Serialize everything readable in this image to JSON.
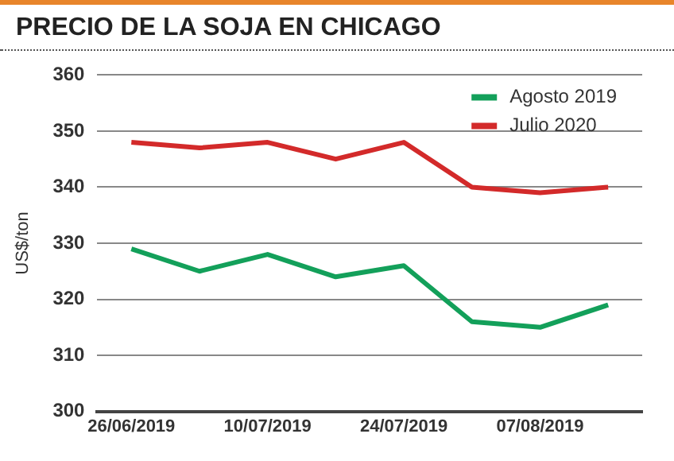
{
  "chart_data": {
    "type": "line",
    "title": "PRECIO DE LA SOJA EN CHICAGO",
    "ylabel": "US$/ton",
    "categories": [
      "26/06/2019",
      null,
      "10/07/2019",
      null,
      "24/07/2019",
      null,
      "07/08/2019",
      null
    ],
    "series": [
      {
        "name": "Agosto 2019",
        "color": "#13a05a",
        "values": [
          329,
          325,
          328,
          324,
          326,
          316,
          315,
          319
        ]
      },
      {
        "name": "Julio 2020",
        "color": "#d32a2a",
        "values": [
          348,
          347,
          348,
          345,
          348,
          340,
          339,
          340
        ]
      }
    ],
    "ylim": [
      300,
      360
    ],
    "yticks": [
      300,
      310,
      320,
      330,
      340,
      350,
      360
    ],
    "grid": "y",
    "legend": "top right",
    "marker": "none",
    "line_style": "solid"
  }
}
